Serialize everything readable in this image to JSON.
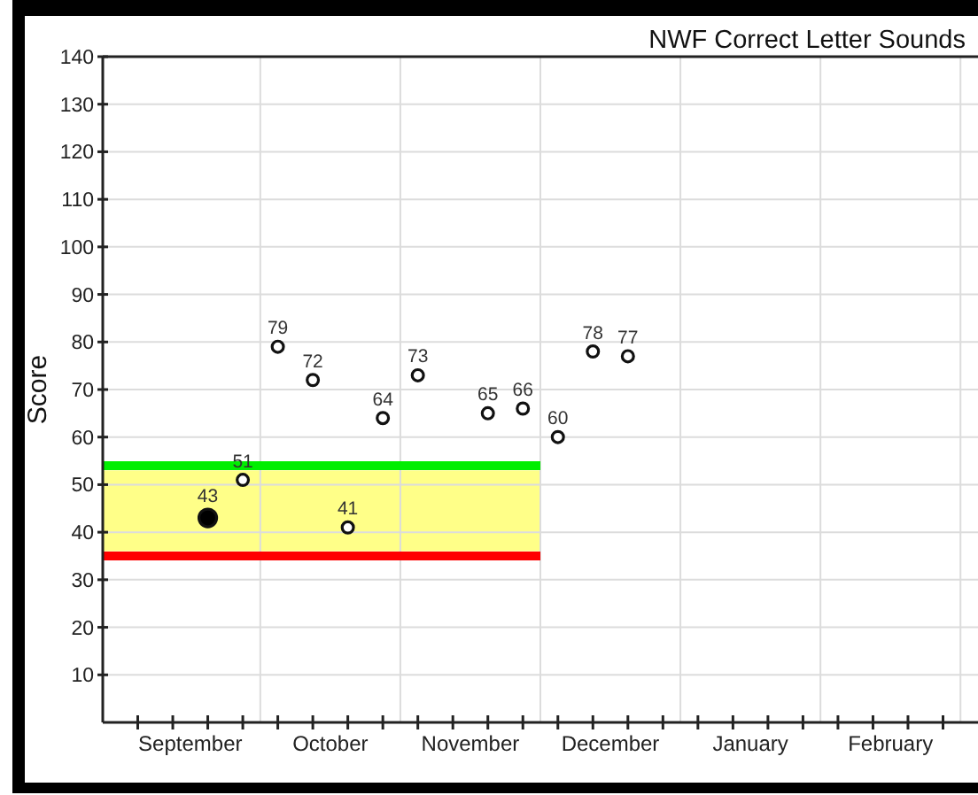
{
  "chart_data": {
    "type": "scatter",
    "title": "NWF Correct Letter Sounds",
    "ylabel": "Score",
    "categories": [
      null,
      null,
      null,
      null,
      null,
      "September",
      null,
      null,
      null,
      null,
      null,
      null,
      null,
      "October",
      null,
      null,
      null,
      null,
      null,
      null,
      null,
      "November",
      null,
      null,
      null,
      null,
      null,
      null,
      null,
      "December",
      null,
      null,
      null,
      null,
      null,
      null,
      null,
      "January",
      null,
      null,
      null,
      null,
      null,
      null,
      null,
      "February",
      null,
      null,
      null,
      null,
      null
    ],
    "ylim": [
      0,
      140
    ],
    "yticks": [
      10,
      20,
      30,
      40,
      50,
      60,
      70,
      80,
      90,
      100,
      110,
      120,
      130,
      140
    ],
    "grid": true,
    "bands": [
      {
        "axis": "y",
        "from": 36,
        "to": 53,
        "color": "#ffff88"
      }
    ],
    "series": [
      {
        "type": "line",
        "color": "#00ee00",
        "values": [
          54,
          54,
          54,
          54,
          54,
          54,
          54,
          54,
          54,
          54,
          54,
          54,
          54,
          54,
          54,
          54,
          54,
          54,
          54,
          54,
          54,
          54,
          54,
          54,
          54,
          54,
          null,
          null,
          null,
          null,
          null,
          null,
          null,
          null,
          null,
          null,
          null,
          null,
          null,
          null,
          null,
          null,
          null,
          null,
          null,
          null,
          null,
          null,
          null,
          null,
          null
        ]
      },
      {
        "type": "line",
        "color": "#ff0000",
        "values": [
          35,
          35,
          35,
          35,
          35,
          35,
          35,
          35,
          35,
          35,
          35,
          35,
          35,
          35,
          35,
          35,
          35,
          35,
          35,
          35,
          35,
          35,
          35,
          35,
          35,
          35,
          null,
          null,
          null,
          null,
          null,
          null,
          null,
          null,
          null,
          null,
          null,
          null,
          null,
          null,
          null,
          null,
          null,
          null,
          null,
          null,
          null,
          null,
          null,
          null,
          null
        ]
      },
      {
        "color": "#000000",
        "marker": "circle",
        "values": [
          null,
          null,
          null,
          null,
          null,
          null,
          43,
          null,
          null,
          null,
          null,
          null,
          null,
          null,
          null,
          null,
          null,
          null,
          null,
          null,
          null,
          null,
          null,
          null,
          null,
          null,
          null,
          null,
          null,
          null,
          null,
          null,
          null,
          null,
          null,
          null,
          null,
          null,
          null,
          null,
          null,
          null,
          null,
          null,
          null,
          null,
          null,
          null,
          null,
          null,
          null
        ],
        "value_labels": [
          null,
          null,
          null,
          null,
          null,
          null,
          "43",
          null,
          null,
          null,
          null,
          null,
          null,
          null,
          null,
          null,
          null,
          null,
          null,
          null,
          null,
          null,
          null,
          null,
          null,
          null,
          null,
          null,
          null,
          null,
          null,
          null,
          null,
          null,
          null,
          null,
          null,
          null,
          null,
          null,
          null,
          null,
          null,
          null,
          null,
          null,
          null,
          null,
          null,
          null,
          null
        ]
      },
      {
        "color": "#ffffff",
        "marker": "circle",
        "values": [
          null,
          null,
          null,
          null,
          null,
          null,
          null,
          null,
          51,
          null,
          79,
          null,
          72,
          null,
          41,
          null,
          64,
          null,
          73,
          null,
          null,
          null,
          65,
          null,
          66,
          null,
          60,
          null,
          78,
          null,
          77,
          null,
          null,
          null,
          null,
          null,
          null,
          null,
          null,
          null,
          null,
          null,
          null,
          null,
          null,
          null,
          null,
          null,
          null,
          null,
          null
        ],
        "value_labels": [
          null,
          null,
          null,
          null,
          null,
          null,
          null,
          null,
          "51",
          null,
          "79",
          null,
          "72",
          null,
          "41",
          null,
          "64",
          null,
          "73",
          null,
          null,
          null,
          "65",
          null,
          "66",
          null,
          "60",
          null,
          "78",
          null,
          "77",
          null,
          null,
          null,
          null,
          null,
          null,
          null,
          null,
          null,
          null,
          null,
          null,
          null,
          null,
          null,
          null,
          null,
          null,
          null,
          null
        ]
      }
    ]
  }
}
